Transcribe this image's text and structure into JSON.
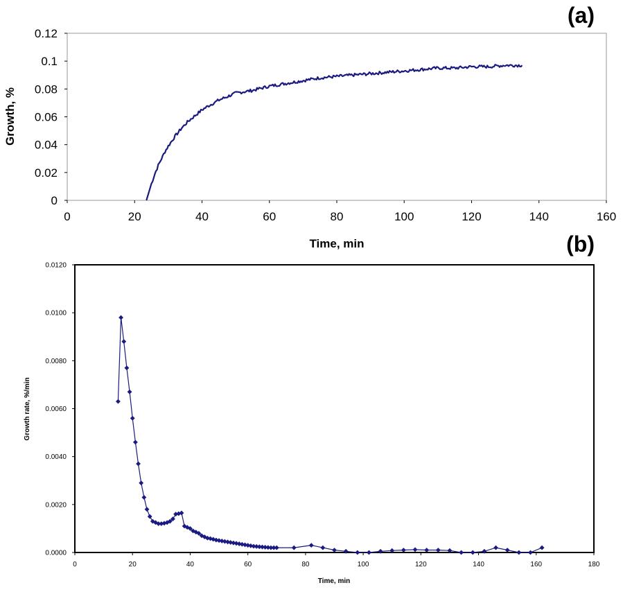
{
  "chart_data": [
    {
      "panel_label": "(a)",
      "type": "line",
      "title": "",
      "xlabel": "Time, min",
      "ylabel": "Growth, %",
      "xlim": [
        0,
        160
      ],
      "ylim": [
        0,
        0.12
      ],
      "xticks": [
        "0",
        "20",
        "40",
        "60",
        "80",
        "100",
        "120",
        "140",
        "160"
      ],
      "yticks": [
        "0",
        "0.02",
        "0.04",
        "0.06",
        "0.08",
        "0.1",
        "0.12"
      ],
      "grid": false,
      "series": [
        {
          "name": "Growth",
          "color": "#1a1a80",
          "x": [
            23.5,
            24,
            25,
            26,
            27,
            28,
            29,
            30,
            32,
            34,
            36,
            38,
            40,
            42,
            45,
            48,
            50,
            55,
            60,
            65,
            70,
            75,
            80,
            85,
            90,
            95,
            100,
            105,
            110,
            115,
            120,
            125,
            130,
            135
          ],
          "y": [
            0.0,
            0.004,
            0.012,
            0.019,
            0.025,
            0.03,
            0.035,
            0.039,
            0.046,
            0.052,
            0.057,
            0.061,
            0.065,
            0.068,
            0.072,
            0.075,
            0.077,
            0.079,
            0.082,
            0.084,
            0.086,
            0.088,
            0.089,
            0.09,
            0.091,
            0.092,
            0.093,
            0.094,
            0.095,
            0.095,
            0.096,
            0.096,
            0.097,
            0.097
          ]
        }
      ]
    },
    {
      "panel_label": "(b)",
      "type": "line",
      "title": "",
      "xlabel": "Time, min",
      "ylabel": "Growth rate, %/min",
      "xlim": [
        0,
        180
      ],
      "ylim": [
        0,
        0.012
      ],
      "xticks": [
        "0",
        "20",
        "40",
        "60",
        "80",
        "100",
        "120",
        "140",
        "160",
        "180"
      ],
      "yticks": [
        "0.0000",
        "0.0020",
        "0.0040",
        "0.0060",
        "0.0080",
        "0.0100",
        "0.0120"
      ],
      "grid": false,
      "series": [
        {
          "name": "Growth rate",
          "color": "#1a1a80",
          "marker": "diamond",
          "x": [
            15,
            16,
            17,
            18,
            19,
            20,
            21,
            22,
            23,
            24,
            25,
            26,
            27,
            28,
            29,
            30,
            31,
            32,
            33,
            34,
            35,
            36,
            37,
            38,
            39,
            40,
            41,
            42,
            43,
            44,
            45,
            46,
            47,
            48,
            49,
            50,
            51,
            52,
            53,
            54,
            55,
            56,
            57,
            58,
            59,
            60,
            61,
            62,
            63,
            64,
            65,
            66,
            67,
            68,
            69,
            70,
            76,
            82,
            86,
            90,
            94,
            98,
            102,
            106,
            110,
            114,
            118,
            122,
            126,
            130,
            134,
            138,
            142,
            146,
            150,
            154,
            158,
            162
          ],
          "y": [
            0.0063,
            0.0098,
            0.0088,
            0.0077,
            0.0067,
            0.0056,
            0.0046,
            0.0037,
            0.0029,
            0.0023,
            0.0018,
            0.0015,
            0.0013,
            0.00125,
            0.0012,
            0.0012,
            0.00122,
            0.00125,
            0.0013,
            0.0014,
            0.0016,
            0.00162,
            0.00165,
            0.0011,
            0.00105,
            0.001,
            0.0009,
            0.00085,
            0.0008,
            0.0007,
            0.00065,
            0.0006,
            0.00058,
            0.00055,
            0.00052,
            0.0005,
            0.00048,
            0.00046,
            0.00044,
            0.00042,
            0.0004,
            0.00038,
            0.00036,
            0.00034,
            0.00032,
            0.0003,
            0.00028,
            0.00026,
            0.00025,
            0.00024,
            0.00023,
            0.00022,
            0.00021,
            0.0002,
            0.0002,
            0.0002,
            0.0002,
            0.0003,
            0.0002,
            0.0001,
            5e-05,
            0.0,
            0.0,
            5e-05,
            8e-05,
            0.0001,
            0.00012,
            0.0001,
            0.0001,
            8e-05,
            0.0,
            0.0,
            5e-05,
            0.0002,
            0.0001,
            0.0,
            0.0,
            0.0002
          ]
        }
      ]
    }
  ]
}
